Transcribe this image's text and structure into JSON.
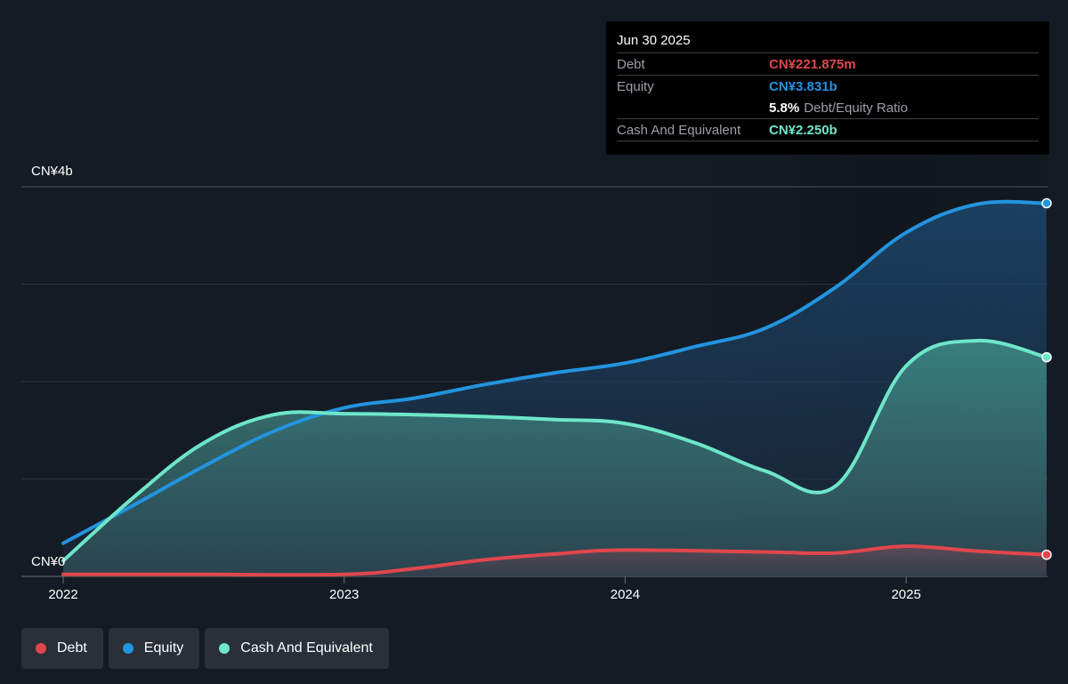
{
  "chart_data": {
    "type": "area",
    "title": "",
    "y_axis_labels": [
      "CN¥4b",
      "CN¥0"
    ],
    "ylim": [
      0,
      4.0
    ],
    "x_axis_labels": [
      "2022",
      "2023",
      "2024",
      "2025"
    ],
    "grid": true,
    "legend_placement": "bottom-left",
    "series": [
      {
        "name": "Equity",
        "color": "#2394df",
        "points": [
          [
            2022.0,
            0.34
          ],
          [
            2022.25,
            0.73
          ],
          [
            2022.5,
            1.13
          ],
          [
            2022.75,
            1.49
          ],
          [
            2023.0,
            1.73
          ],
          [
            2023.25,
            1.83
          ],
          [
            2023.5,
            1.97
          ],
          [
            2023.75,
            2.09
          ],
          [
            2024.0,
            2.19
          ],
          [
            2024.25,
            2.36
          ],
          [
            2024.5,
            2.55
          ],
          [
            2024.75,
            2.97
          ],
          [
            2025.0,
            3.53
          ],
          [
            2025.25,
            3.82
          ],
          [
            2025.5,
            3.831
          ]
        ]
      },
      {
        "name": "Cash And Equivalent",
        "color": "#6ee6c9",
        "points": [
          [
            2022.0,
            0.16
          ],
          [
            2022.25,
            0.81
          ],
          [
            2022.5,
            1.37
          ],
          [
            2022.75,
            1.66
          ],
          [
            2023.0,
            1.67
          ],
          [
            2023.25,
            1.66
          ],
          [
            2023.5,
            1.64
          ],
          [
            2023.75,
            1.61
          ],
          [
            2024.0,
            1.57
          ],
          [
            2024.25,
            1.37
          ],
          [
            2024.5,
            1.08
          ],
          [
            2024.75,
            0.93
          ],
          [
            2025.0,
            2.16
          ],
          [
            2025.25,
            2.42
          ],
          [
            2025.5,
            2.25
          ]
        ]
      },
      {
        "name": "Debt",
        "color": "#e0474d",
        "points": [
          [
            2022.0,
            0.02
          ],
          [
            2022.5,
            0.02
          ],
          [
            2023.0,
            0.02
          ],
          [
            2023.25,
            0.08
          ],
          [
            2023.5,
            0.17
          ],
          [
            2023.75,
            0.23
          ],
          [
            2024.0,
            0.27
          ],
          [
            2024.5,
            0.25
          ],
          [
            2024.75,
            0.24
          ],
          [
            2025.0,
            0.31
          ],
          [
            2025.25,
            0.26
          ],
          [
            2025.5,
            0.222
          ]
        ]
      }
    ]
  },
  "tooltip": {
    "date": "Jun 30 2025",
    "debt_label": "Debt",
    "debt_value": "CN¥221.875m",
    "equity_label": "Equity",
    "equity_value": "CN¥3.831b",
    "ratio_value": "5.8%",
    "ratio_label": "Debt/Equity Ratio",
    "cash_label": "Cash And Equivalent",
    "cash_value": "CN¥2.250b"
  },
  "legend": {
    "debt": "Debt",
    "equity": "Equity",
    "cash": "Cash And Equivalent"
  },
  "colors": {
    "debt": "#e0474d",
    "equity": "#2394df",
    "cash": "#6ee6c9",
    "background": "#151b24"
  }
}
